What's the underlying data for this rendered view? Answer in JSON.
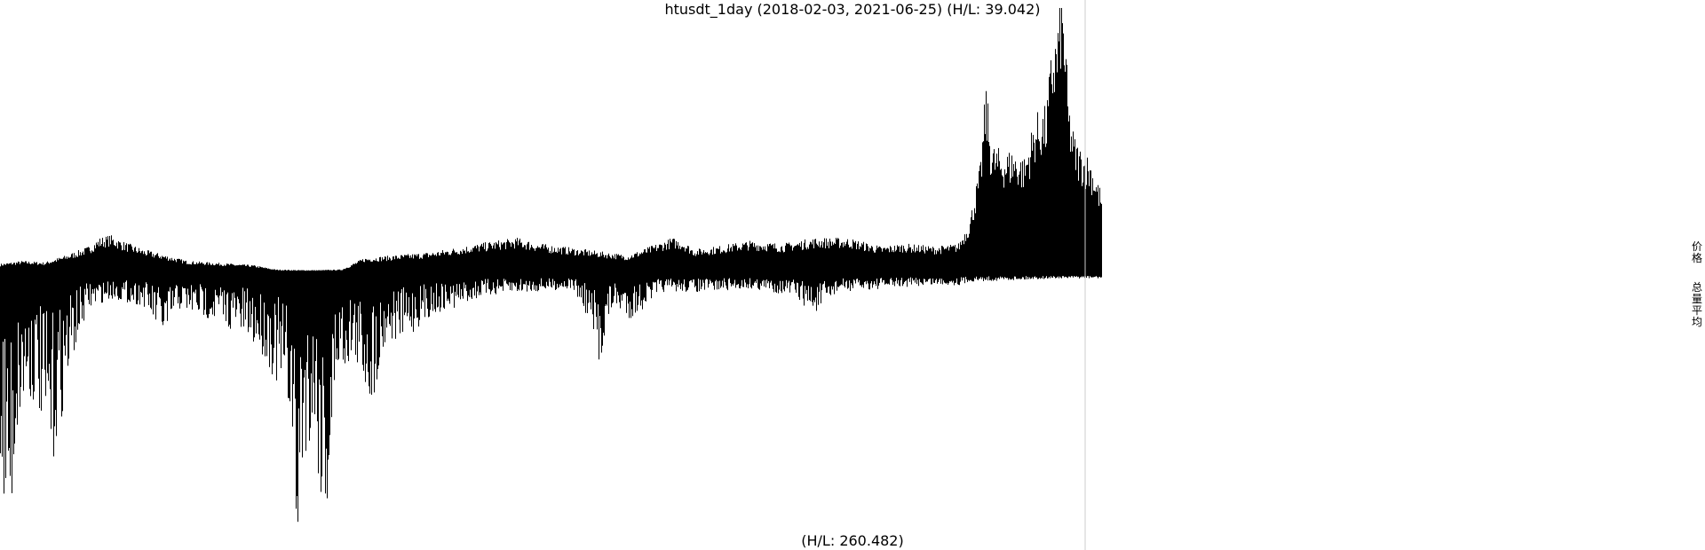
{
  "chart_data": {
    "type": "area",
    "title": "htusdt_1day (2018-02-03, 2021-06-25) (H/L: 39.042)",
    "x_start": "2018-02-03",
    "x_end": "2021-06-25",
    "upper_panel": {
      "label": "价格",
      "hl_ratio": 39.042,
      "profile": [
        [
          0.0,
          0.03
        ],
        [
          0.02,
          0.04
        ],
        [
          0.04,
          0.035
        ],
        [
          0.06,
          0.06
        ],
        [
          0.08,
          0.09
        ],
        [
          0.09,
          0.12
        ],
        [
          0.1,
          0.13
        ],
        [
          0.11,
          0.11
        ],
        [
          0.13,
          0.08
        ],
        [
          0.15,
          0.06
        ],
        [
          0.17,
          0.04
        ],
        [
          0.19,
          0.035
        ],
        [
          0.21,
          0.03
        ],
        [
          0.23,
          0.025
        ],
        [
          0.25,
          0.01
        ],
        [
          0.27,
          0.008
        ],
        [
          0.29,
          0.008
        ],
        [
          0.31,
          0.01
        ],
        [
          0.33,
          0.05
        ],
        [
          0.36,
          0.06
        ],
        [
          0.39,
          0.07
        ],
        [
          0.42,
          0.09
        ],
        [
          0.45,
          0.11
        ],
        [
          0.47,
          0.12
        ],
        [
          0.49,
          0.1
        ],
        [
          0.51,
          0.09
        ],
        [
          0.53,
          0.08
        ],
        [
          0.55,
          0.07
        ],
        [
          0.57,
          0.06
        ],
        [
          0.59,
          0.09
        ],
        [
          0.61,
          0.12
        ],
        [
          0.62,
          0.11
        ],
        [
          0.63,
          0.08
        ],
        [
          0.65,
          0.09
        ],
        [
          0.68,
          0.11
        ],
        [
          0.71,
          0.1
        ],
        [
          0.74,
          0.12
        ],
        [
          0.77,
          0.12
        ],
        [
          0.8,
          0.09
        ],
        [
          0.82,
          0.1
        ],
        [
          0.85,
          0.09
        ],
        [
          0.87,
          0.1
        ],
        [
          0.88,
          0.18
        ],
        [
          0.89,
          0.38
        ],
        [
          0.895,
          0.66
        ],
        [
          0.9,
          0.45
        ],
        [
          0.91,
          0.42
        ],
        [
          0.92,
          0.43
        ],
        [
          0.93,
          0.4
        ],
        [
          0.94,
          0.55
        ],
        [
          0.95,
          0.58
        ],
        [
          0.955,
          0.8
        ],
        [
          0.96,
          0.86
        ],
        [
          0.963,
          1.0
        ],
        [
          0.966,
          0.92
        ],
        [
          0.97,
          0.6
        ],
        [
          0.975,
          0.48
        ],
        [
          0.98,
          0.44
        ],
        [
          0.99,
          0.4
        ],
        [
          1.0,
          0.28
        ]
      ]
    },
    "lower_panel": {
      "label": "总量平均",
      "hl_label": "(H/L: 260.482)",
      "hl_ratio": 260.482,
      "profile": [
        [
          0.0,
          0.55
        ],
        [
          0.008,
          0.8
        ],
        [
          0.016,
          0.45
        ],
        [
          0.025,
          0.35
        ],
        [
          0.035,
          0.4
        ],
        [
          0.045,
          0.6
        ],
        [
          0.055,
          0.42
        ],
        [
          0.065,
          0.25
        ],
        [
          0.08,
          0.1
        ],
        [
          0.1,
          0.07
        ],
        [
          0.13,
          0.09
        ],
        [
          0.15,
          0.2
        ],
        [
          0.16,
          0.1
        ],
        [
          0.18,
          0.12
        ],
        [
          0.2,
          0.14
        ],
        [
          0.22,
          0.18
        ],
        [
          0.24,
          0.24
        ],
        [
          0.255,
          0.35
        ],
        [
          0.265,
          0.45
        ],
        [
          0.268,
          1.0
        ],
        [
          0.275,
          0.55
        ],
        [
          0.285,
          0.45
        ],
        [
          0.292,
          0.7
        ],
        [
          0.298,
          0.75
        ],
        [
          0.305,
          0.3
        ],
        [
          0.32,
          0.25
        ],
        [
          0.337,
          0.38
        ],
        [
          0.35,
          0.2
        ],
        [
          0.37,
          0.18
        ],
        [
          0.39,
          0.12
        ],
        [
          0.41,
          0.1
        ],
        [
          0.44,
          0.06
        ],
        [
          0.48,
          0.05
        ],
        [
          0.52,
          0.04
        ],
        [
          0.535,
          0.14
        ],
        [
          0.543,
          0.28
        ],
        [
          0.555,
          0.1
        ],
        [
          0.573,
          0.13
        ],
        [
          0.6,
          0.05
        ],
        [
          0.64,
          0.05
        ],
        [
          0.68,
          0.04
        ],
        [
          0.72,
          0.06
        ],
        [
          0.74,
          0.12
        ],
        [
          0.76,
          0.05
        ],
        [
          0.8,
          0.04
        ],
        [
          0.84,
          0.03
        ],
        [
          0.87,
          0.03
        ],
        [
          0.88,
          0.02
        ],
        [
          0.92,
          0.015
        ],
        [
          0.96,
          0.01
        ],
        [
          1.0,
          0.01
        ]
      ]
    },
    "colors": {
      "bars": "#000000",
      "background": "#ffffff",
      "cursor": "#cccccc"
    }
  }
}
